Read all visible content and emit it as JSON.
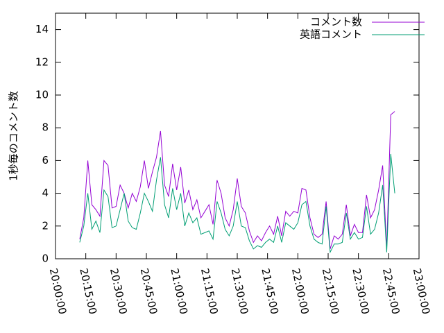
{
  "chart_data": {
    "type": "line",
    "ylabel": "1秒毎のコメント数",
    "xlim": [
      72000,
      82800
    ],
    "xticks": [
      {
        "value": 72000,
        "label": "20:00:00"
      },
      {
        "value": 72900,
        "label": "20:15:00"
      },
      {
        "value": 73800,
        "label": "20:30:00"
      },
      {
        "value": 74700,
        "label": "20:45:00"
      },
      {
        "value": 75600,
        "label": "21:00:00"
      },
      {
        "value": 76500,
        "label": "21:15:00"
      },
      {
        "value": 77400,
        "label": "21:30:00"
      },
      {
        "value": 78300,
        "label": "21:45:00"
      },
      {
        "value": 79200,
        "label": "22:00:00"
      },
      {
        "value": 80100,
        "label": "22:15:00"
      },
      {
        "value": 81000,
        "label": "22:30:00"
      },
      {
        "value": 81900,
        "label": "22:45:00"
      },
      {
        "value": 82800,
        "label": "23:00:00"
      }
    ],
    "ylim": [
      0,
      15
    ],
    "yticks": [
      0,
      2,
      4,
      6,
      8,
      10,
      12,
      14
    ],
    "legend": "top-right",
    "x": [
      72720,
      72840,
      72960,
      73080,
      73200,
      73320,
      73440,
      73560,
      73680,
      73800,
      73920,
      74040,
      74160,
      74280,
      74400,
      74520,
      74640,
      74760,
      74880,
      75000,
      75120,
      75240,
      75360,
      75480,
      75600,
      75720,
      75840,
      75960,
      76080,
      76200,
      76320,
      76440,
      76560,
      76680,
      76800,
      76920,
      77040,
      77160,
      77280,
      77400,
      77520,
      77640,
      77760,
      77880,
      78000,
      78120,
      78240,
      78360,
      78480,
      78600,
      78720,
      78840,
      78960,
      79080,
      79200,
      79320,
      79440,
      79560,
      79680,
      79800,
      79920,
      80040,
      80160,
      80280,
      80400,
      80520,
      80640,
      80760,
      80880,
      81000,
      81120,
      81240,
      81360,
      81480,
      81600,
      81720,
      81840,
      81960,
      82080
    ],
    "series": [
      {
        "name": "コメント数",
        "color": "#9400d3",
        "values": [
          1.2,
          2.5,
          6.0,
          3.3,
          3.0,
          2.6,
          6.0,
          5.7,
          3.1,
          3.2,
          4.5,
          4.0,
          3.1,
          4.0,
          3.5,
          4.4,
          6.0,
          4.3,
          5.3,
          6.2,
          7.8,
          4.5,
          3.8,
          5.8,
          4.2,
          5.6,
          3.4,
          4.2,
          3.0,
          3.6,
          2.5,
          2.9,
          3.3,
          2.1,
          4.8,
          4.0,
          2.5,
          2.0,
          3.0,
          4.9,
          3.2,
          2.8,
          1.7,
          1.0,
          1.4,
          1.1,
          1.6,
          2.0,
          1.5,
          2.6,
          1.4,
          2.9,
          2.6,
          2.9,
          2.8,
          4.3,
          4.2,
          2.5,
          1.5,
          1.3,
          1.5,
          3.5,
          0.6,
          1.4,
          1.2,
          1.5,
          3.3,
          1.4,
          2.1,
          1.6,
          1.6,
          3.9,
          2.5,
          3.0,
          4.2,
          5.7,
          0.6,
          8.8,
          9.0
        ]
      },
      {
        "name": "英語コメント",
        "color": "#009e73",
        "values": [
          1.0,
          2.0,
          4.0,
          1.8,
          2.3,
          1.6,
          4.2,
          3.8,
          1.9,
          2.0,
          3.0,
          4.0,
          2.3,
          1.9,
          1.8,
          2.8,
          4.0,
          3.5,
          2.9,
          4.8,
          6.2,
          3.3,
          2.5,
          4.3,
          3.0,
          4.0,
          2.0,
          2.8,
          2.2,
          2.5,
          1.5,
          1.6,
          1.7,
          1.2,
          3.5,
          2.8,
          1.8,
          1.4,
          2.0,
          3.5,
          2.0,
          1.9,
          1.1,
          0.6,
          0.8,
          0.7,
          1.0,
          1.2,
          1.0,
          2.0,
          1.0,
          2.2,
          2.0,
          1.8,
          2.2,
          3.3,
          3.5,
          2.0,
          1.2,
          1.0,
          0.9,
          3.2,
          0.4,
          0.9,
          0.9,
          1.0,
          2.8,
          1.2,
          1.6,
          1.2,
          1.3,
          3.2,
          1.5,
          1.8,
          2.8,
          4.5,
          0.4,
          6.4,
          4.0
        ]
      }
    ]
  }
}
